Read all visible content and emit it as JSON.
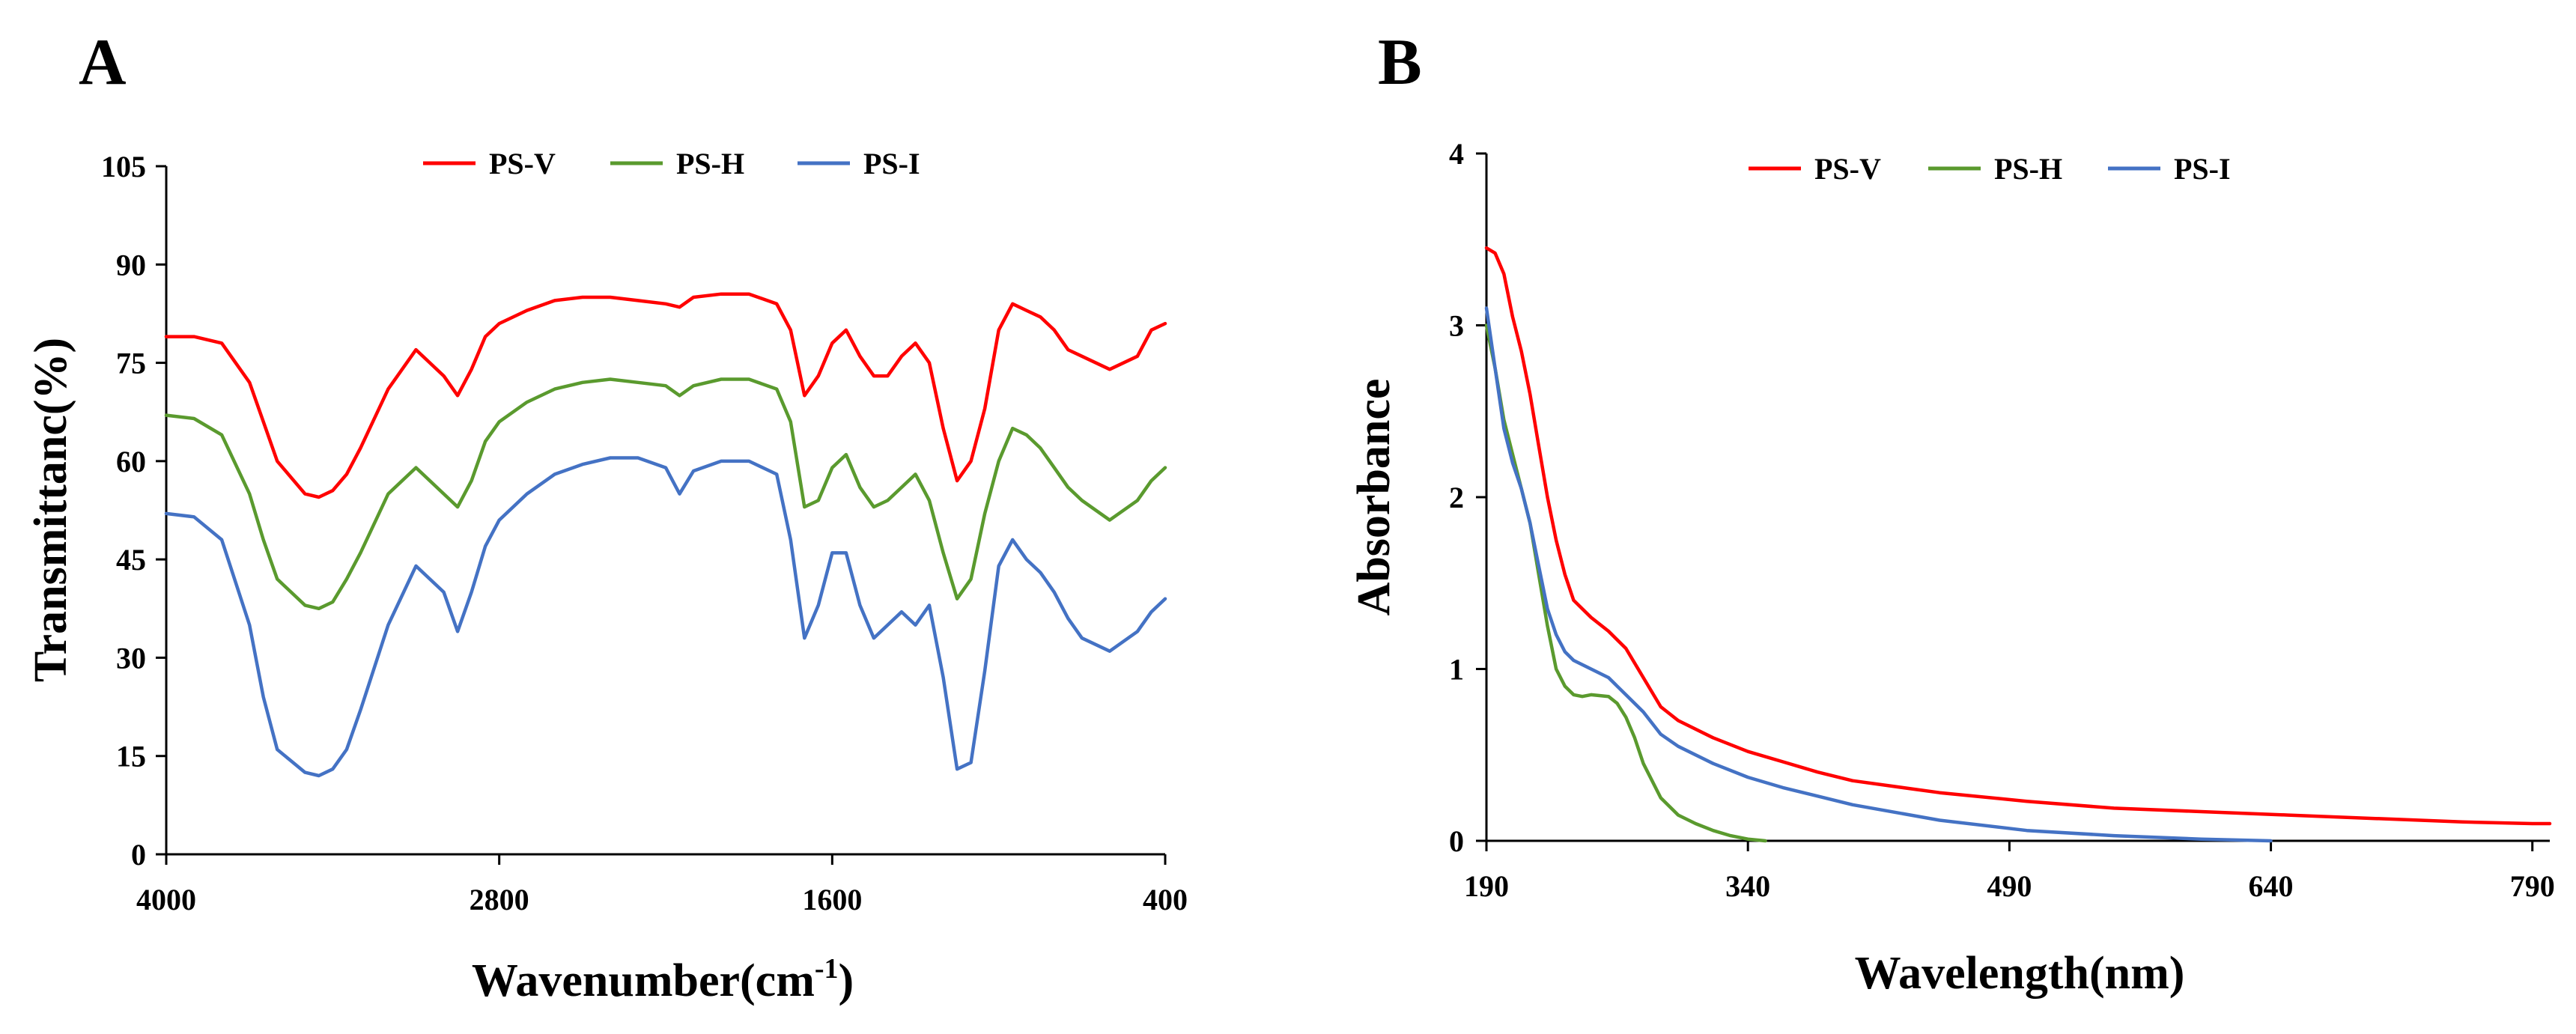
{
  "chart_data": [
    {
      "panel": "A",
      "type": "line",
      "xlabel": "Wavenumber(cm",
      "xlabel_sup": "-1",
      "xlabel_end": ")",
      "ylabel": "Transmittanc(%)",
      "xlim": [
        4000,
        400
      ],
      "ylim": [
        0,
        105
      ],
      "xticks": [
        "4000",
        "2800",
        "1600",
        "400"
      ],
      "yticks": [
        "0",
        "15",
        "30",
        "45",
        "60",
        "75",
        "90",
        "105"
      ],
      "legend": "top-center",
      "series": [
        {
          "name": "PS-V",
          "color": "#ff0000",
          "x": [
            4000,
            3900,
            3800,
            3700,
            3650,
            3600,
            3500,
            3450,
            3400,
            3350,
            3300,
            3200,
            3100,
            3000,
            2950,
            2900,
            2850,
            2800,
            2700,
            2600,
            2500,
            2400,
            2300,
            2200,
            2150,
            2100,
            2000,
            1900,
            1800,
            1750,
            1700,
            1650,
            1600,
            1550,
            1500,
            1450,
            1400,
            1350,
            1300,
            1250,
            1200,
            1150,
            1100,
            1050,
            1000,
            950,
            900,
            850,
            800,
            750,
            700,
            600,
            500,
            450,
            400
          ],
          "y": [
            79,
            79,
            78,
            72,
            66,
            60,
            55,
            54.5,
            55.5,
            58,
            62,
            71,
            77,
            73,
            70,
            74,
            79,
            81,
            83,
            84.5,
            85,
            85,
            84.5,
            84,
            83.5,
            85,
            85.5,
            85.5,
            84,
            80,
            70,
            73,
            78,
            80,
            76,
            73,
            73,
            76,
            78,
            75,
            65,
            57,
            60,
            68,
            80,
            84,
            83,
            82,
            80,
            77,
            76,
            74,
            76,
            80,
            81
          ]
        },
        {
          "name": "PS-H",
          "color": "#5a9a2e",
          "x": [
            4000,
            3900,
            3800,
            3700,
            3650,
            3600,
            3500,
            3450,
            3400,
            3350,
            3300,
            3200,
            3100,
            3000,
            2950,
            2900,
            2850,
            2800,
            2700,
            2600,
            2500,
            2400,
            2300,
            2200,
            2150,
            2100,
            2000,
            1900,
            1800,
            1750,
            1700,
            1650,
            1600,
            1550,
            1500,
            1450,
            1400,
            1350,
            1300,
            1250,
            1200,
            1150,
            1100,
            1050,
            1000,
            950,
            900,
            850,
            800,
            750,
            700,
            600,
            500,
            450,
            400
          ],
          "y": [
            67,
            66.5,
            64,
            55,
            48,
            42,
            38,
            37.5,
            38.5,
            42,
            46,
            55,
            59,
            55,
            53,
            57,
            63,
            66,
            69,
            71,
            72,
            72.5,
            72,
            71.5,
            70,
            71.5,
            72.5,
            72.5,
            71,
            66,
            53,
            54,
            59,
            61,
            56,
            53,
            54,
            56,
            58,
            54,
            46,
            39,
            42,
            52,
            60,
            65,
            64,
            62,
            59,
            56,
            54,
            51,
            54,
            57,
            59
          ]
        },
        {
          "name": "PS-I",
          "color": "#4472c4",
          "x": [
            4000,
            3900,
            3800,
            3700,
            3650,
            3600,
            3500,
            3450,
            3400,
            3350,
            3300,
            3200,
            3100,
            3000,
            2950,
            2900,
            2850,
            2800,
            2700,
            2600,
            2500,
            2400,
            2300,
            2200,
            2150,
            2100,
            2000,
            1900,
            1800,
            1750,
            1700,
            1650,
            1600,
            1550,
            1500,
            1450,
            1400,
            1350,
            1300,
            1250,
            1200,
            1150,
            1100,
            1050,
            1000,
            950,
            900,
            850,
            800,
            750,
            700,
            600,
            500,
            450,
            400
          ],
          "y": [
            52,
            51.5,
            48,
            35,
            24,
            16,
            12.5,
            12,
            13,
            16,
            22,
            35,
            44,
            40,
            34,
            40,
            47,
            51,
            55,
            58,
            59.5,
            60.5,
            60.5,
            59,
            55,
            58.5,
            60,
            60,
            58,
            48,
            33,
            38,
            46,
            46,
            38,
            33,
            35,
            37,
            35,
            38,
            27,
            13,
            14,
            28,
            44,
            48,
            45,
            43,
            40,
            36,
            33,
            31,
            34,
            37,
            39
          ]
        }
      ],
      "legend_entries": [
        "PS-V",
        "PS-H",
        "PS-I"
      ]
    },
    {
      "panel": "B",
      "type": "line",
      "xlabel": "Wavelength(nm)",
      "ylabel": "Absorbance",
      "xlim": [
        190,
        800
      ],
      "ylim": [
        0,
        4
      ],
      "xticks": [
        "190",
        "340",
        "490",
        "640",
        "790"
      ],
      "yticks": [
        "0",
        "1",
        "2",
        "3",
        "4"
      ],
      "legend": "top-center",
      "series": [
        {
          "name": "PS-V",
          "color": "#ff0000",
          "x": [
            190,
            195,
            200,
            205,
            210,
            215,
            220,
            225,
            230,
            235,
            240,
            250,
            260,
            270,
            280,
            290,
            300,
            320,
            340,
            360,
            380,
            400,
            450,
            500,
            550,
            600,
            650,
            700,
            750,
            790,
            800
          ],
          "y": [
            3.45,
            3.42,
            3.3,
            3.05,
            2.85,
            2.6,
            2.3,
            2.0,
            1.75,
            1.55,
            1.4,
            1.3,
            1.22,
            1.12,
            0.95,
            0.78,
            0.7,
            0.6,
            0.52,
            0.46,
            0.4,
            0.35,
            0.28,
            0.23,
            0.19,
            0.17,
            0.15,
            0.13,
            0.11,
            0.1,
            0.1
          ]
        },
        {
          "name": "PS-H",
          "color": "#5a9a2e",
          "x": [
            190,
            195,
            200,
            205,
            210,
            215,
            220,
            225,
            230,
            235,
            240,
            245,
            250,
            260,
            265,
            270,
            275,
            280,
            290,
            300,
            310,
            320,
            330,
            340,
            350
          ],
          "y": [
            3.0,
            2.75,
            2.45,
            2.25,
            2.05,
            1.85,
            1.55,
            1.25,
            1.0,
            0.9,
            0.85,
            0.84,
            0.85,
            0.84,
            0.8,
            0.72,
            0.6,
            0.45,
            0.25,
            0.15,
            0.1,
            0.06,
            0.03,
            0.01,
            0.0
          ]
        },
        {
          "name": "PS-I",
          "color": "#4472c4",
          "x": [
            190,
            195,
            200,
            205,
            210,
            215,
            220,
            225,
            230,
            235,
            240,
            250,
            260,
            270,
            280,
            290,
            300,
            320,
            340,
            360,
            380,
            400,
            450,
            500,
            550,
            600,
            640
          ],
          "y": [
            3.1,
            2.75,
            2.4,
            2.2,
            2.05,
            1.85,
            1.6,
            1.35,
            1.2,
            1.1,
            1.05,
            1.0,
            0.95,
            0.85,
            0.75,
            0.62,
            0.55,
            0.45,
            0.37,
            0.31,
            0.26,
            0.21,
            0.12,
            0.06,
            0.03,
            0.01,
            0.0
          ]
        }
      ],
      "legend_entries": [
        "PS-V",
        "PS-H",
        "PS-I"
      ]
    }
  ]
}
